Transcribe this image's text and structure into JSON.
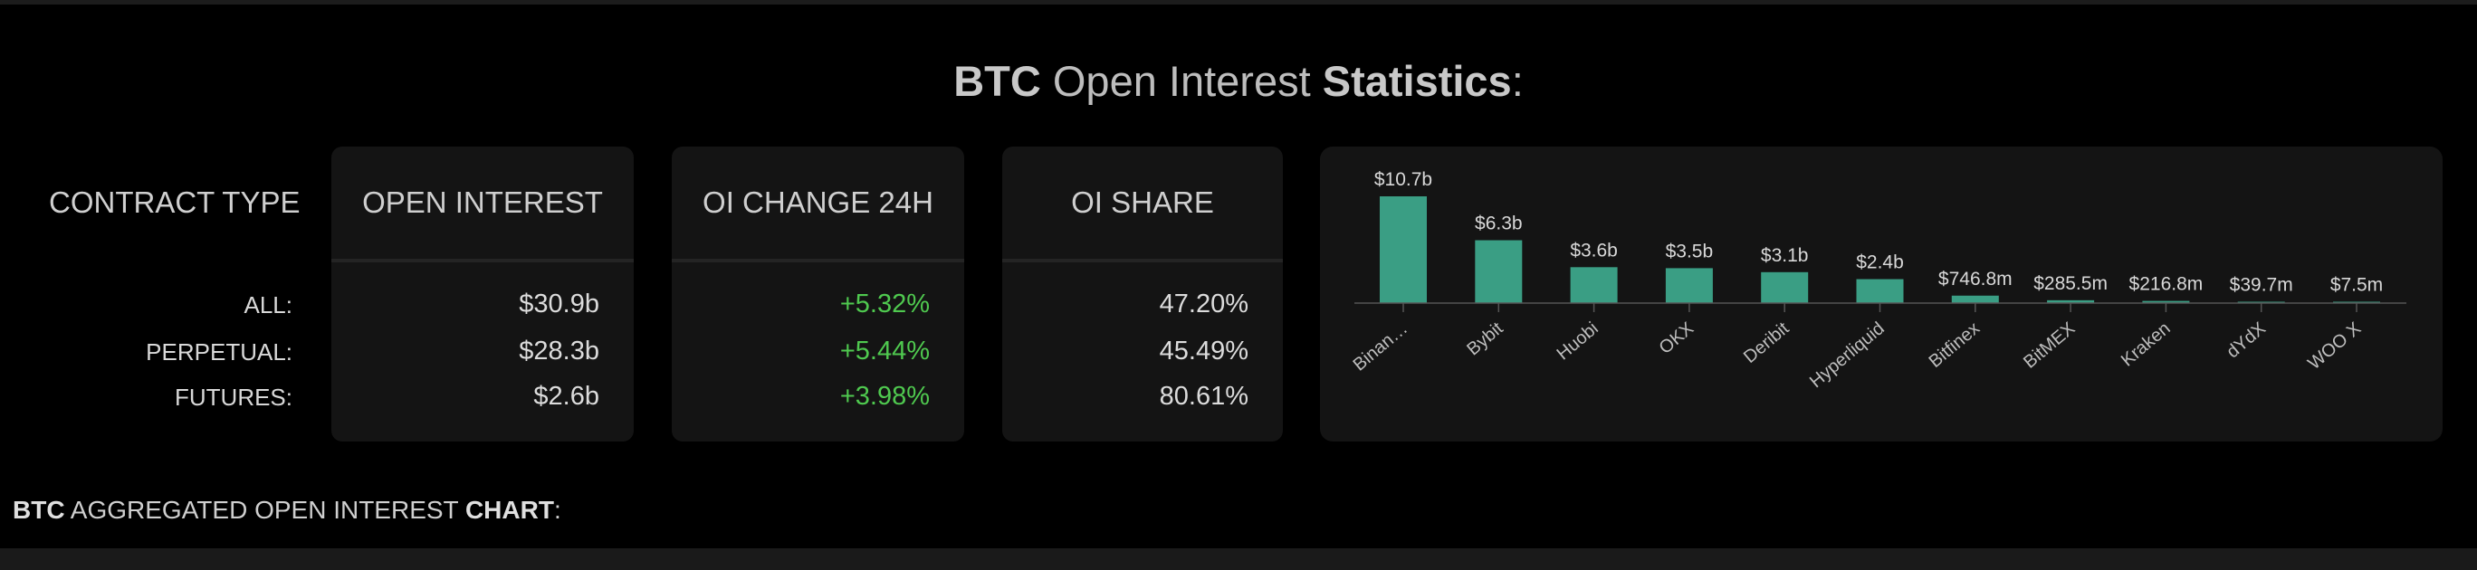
{
  "title": {
    "symbol": "BTC",
    "middle": " Open Interest ",
    "strong": "Statistics",
    "colon": ":"
  },
  "table": {
    "label_header": "CONTRACT TYPE",
    "row_labels": [
      "ALL:",
      "PERPETUAL:",
      "FUTURES:"
    ],
    "columns": [
      {
        "header": "OPEN INTEREST",
        "values": [
          "$30.9b",
          "$28.3b",
          "$2.6b"
        ]
      },
      {
        "header": "OI CHANGE 24H",
        "values": [
          "+5.32%",
          "+5.44%",
          "+3.98%"
        ]
      },
      {
        "header": "OI SHARE",
        "values": [
          "47.20%",
          "45.49%",
          "80.61%"
        ]
      }
    ]
  },
  "chart_data": {
    "type": "bar",
    "categories": [
      "Binan…",
      "Bybit",
      "Huobi",
      "OKX",
      "Deribit",
      "Hyperliquid",
      "Bitfinex",
      "BitMEX",
      "Kraken",
      "dYdX",
      "WOO X"
    ],
    "values": [
      10.7,
      6.3,
      3.6,
      3.5,
      3.1,
      2.4,
      0.7468,
      0.2855,
      0.2168,
      0.0397,
      0.0075
    ],
    "data_labels": [
      "$10.7b",
      "$6.3b",
      "$3.6b",
      "$3.5b",
      "$3.1b",
      "$2.4b",
      "$746.8m",
      "$285.5m",
      "$216.8m",
      "$39.7m",
      "$7.5m"
    ],
    "ylim": [
      0,
      10.7
    ],
    "bar_color": "#3a9e84"
  },
  "bottom": {
    "symbol": "BTC",
    "middle": " AGGREGATED OPEN INTEREST ",
    "strong": "CHART",
    "colon": ":"
  },
  "colors": {
    "positive": "#4fc94f",
    "card": "#141414",
    "background": "#000000"
  }
}
